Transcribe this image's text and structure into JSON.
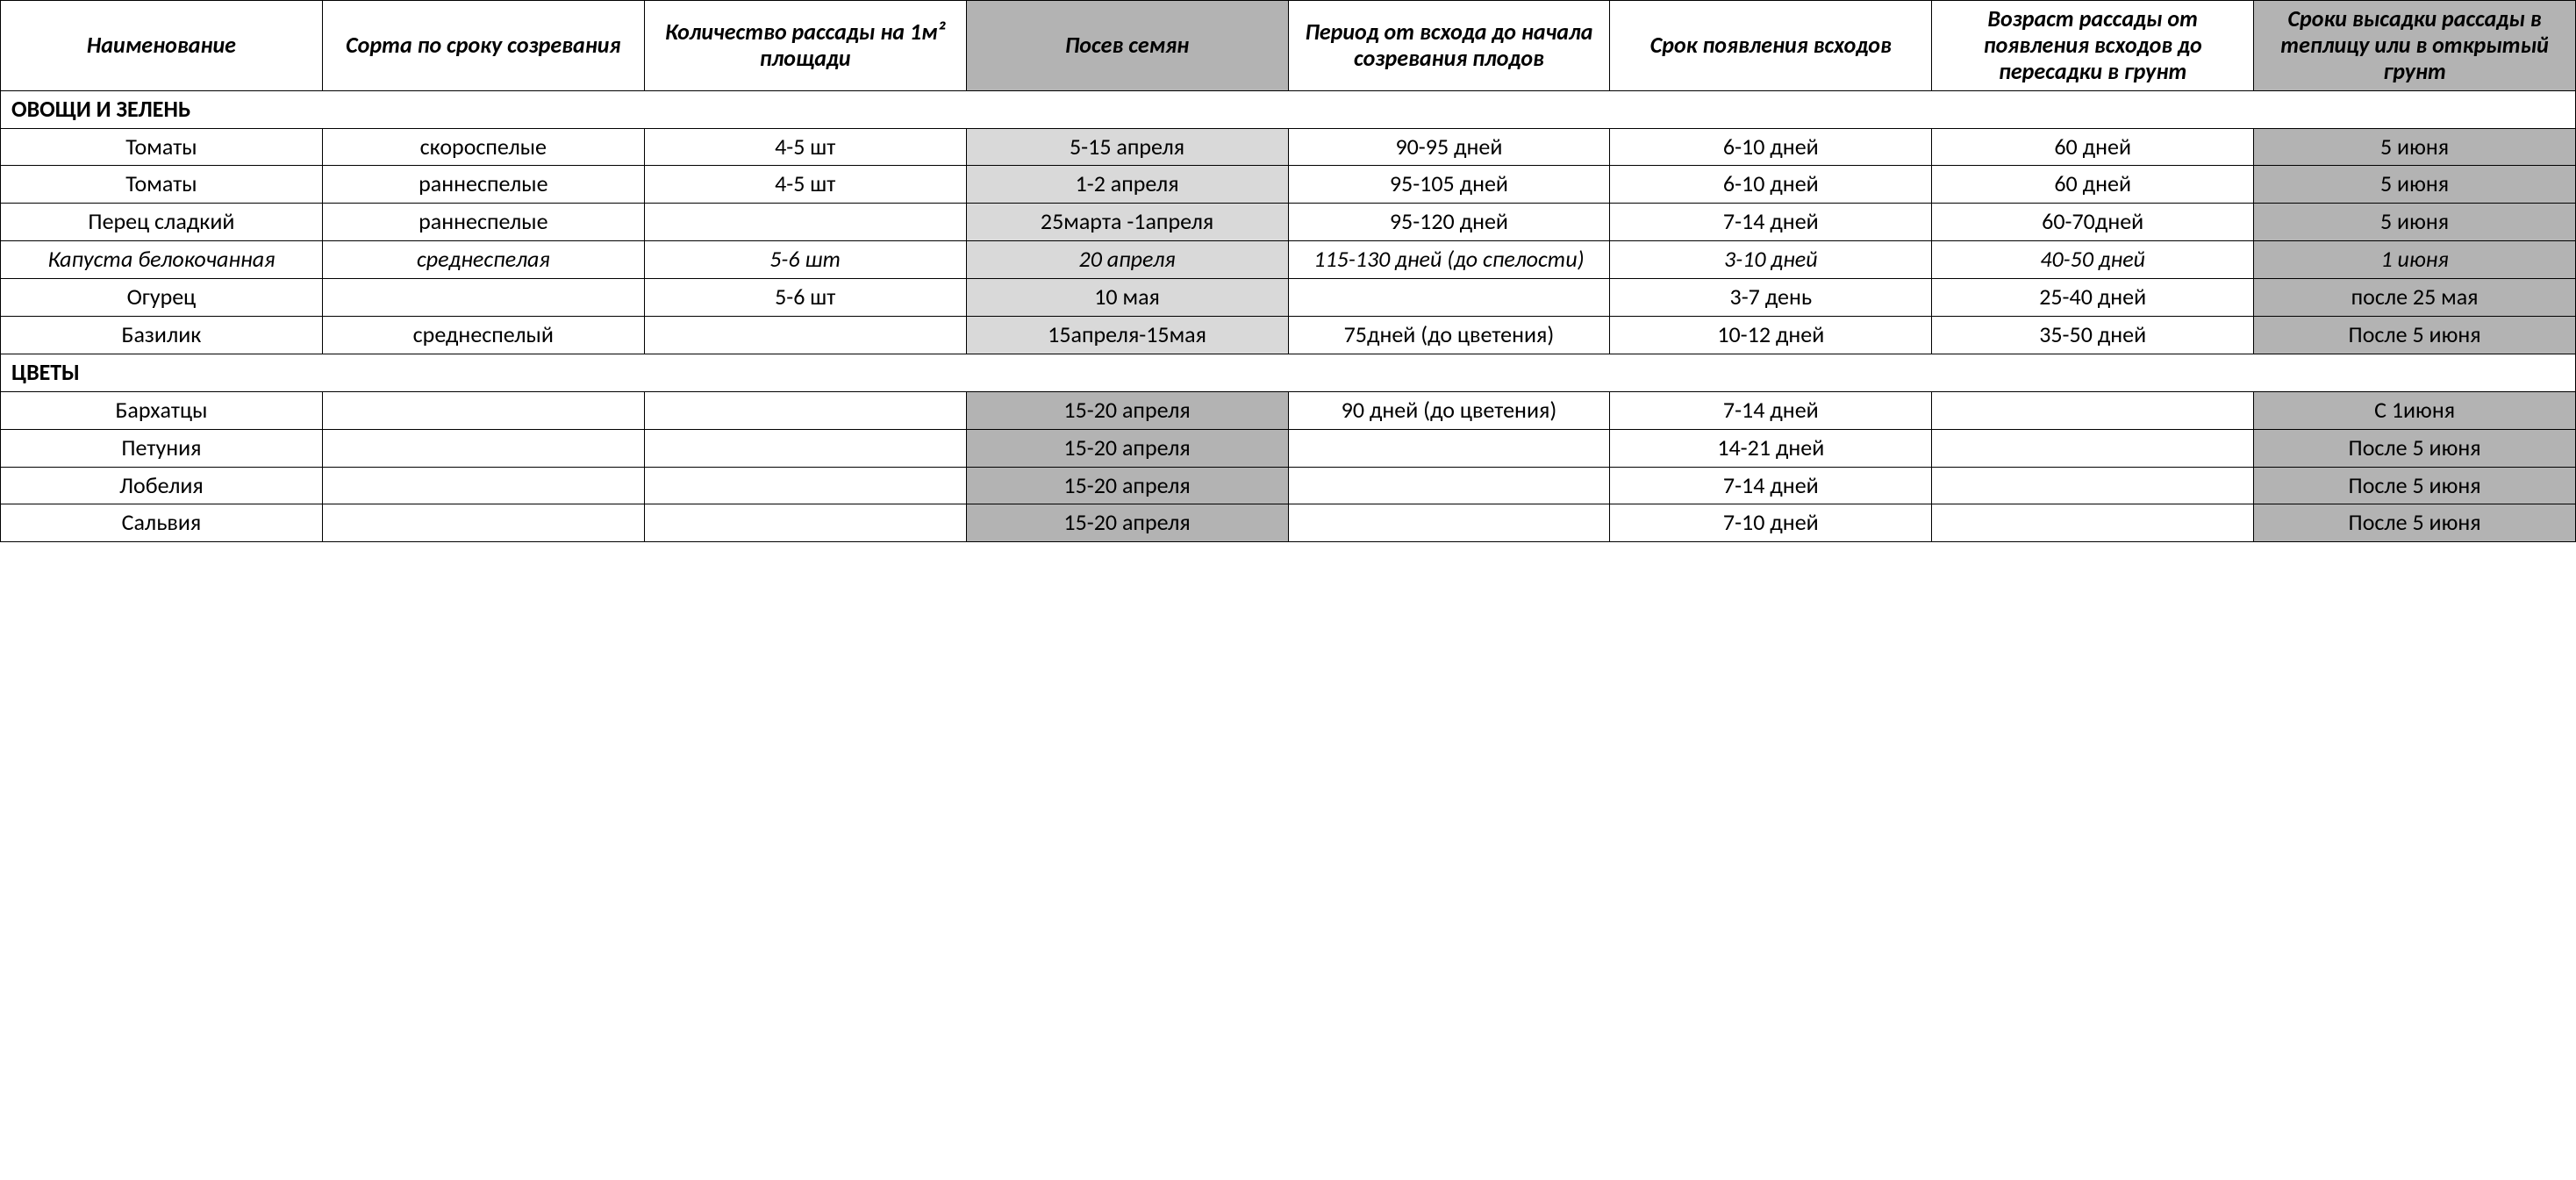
{
  "colors": {
    "header_shade_dark": "#b3b3b3",
    "header_shade_none": "#ffffff",
    "cell_shade_light": "#d9d9d9",
    "cell_shade_dark": "#b3b3b3",
    "border": "#000000",
    "text": "#000000"
  },
  "columns": [
    {
      "label": "Наименование",
      "header_bg": "#ffffff"
    },
    {
      "label": "Сорта по сроку созревания",
      "header_bg": "#ffffff"
    },
    {
      "label": "Количество рассады на 1м² площади",
      "header_bg": "#ffffff"
    },
    {
      "label": "Посев семян",
      "header_bg": "#b3b3b3"
    },
    {
      "label": "Период от всхода до начала созревания плодов",
      "header_bg": "#ffffff"
    },
    {
      "label": "Срок появления всходов",
      "header_bg": "#ffffff"
    },
    {
      "label": "Возраст рассады от появления всходов до пересадки в грунт",
      "header_bg": "#ffffff"
    },
    {
      "label": "Сроки высадки рассады в теплицу или в открытый грунт",
      "header_bg": "#b3b3b3"
    }
  ],
  "sections": [
    {
      "title": "ОВОЩИ И ЗЕЛЕНЬ",
      "rows": [
        {
          "italic": false,
          "cells": [
            {
              "v": "Томаты",
              "bg": "#ffffff"
            },
            {
              "v": "скороспелые",
              "bg": "#ffffff"
            },
            {
              "v": "4-5 шт",
              "bg": "#ffffff"
            },
            {
              "v": "5-15 апреля",
              "bg": "#d9d9d9"
            },
            {
              "v": "90-95 дней",
              "bg": "#ffffff"
            },
            {
              "v": "6-10 дней",
              "bg": "#ffffff"
            },
            {
              "v": "60 дней",
              "bg": "#ffffff"
            },
            {
              "v": "5 июня",
              "bg": "#b3b3b3"
            }
          ]
        },
        {
          "italic": false,
          "cells": [
            {
              "v": "Томаты",
              "bg": "#ffffff"
            },
            {
              "v": "раннеспелые",
              "bg": "#ffffff"
            },
            {
              "v": "4-5 шт",
              "bg": "#ffffff"
            },
            {
              "v": "1-2 апреля",
              "bg": "#d9d9d9"
            },
            {
              "v": "95-105 дней",
              "bg": "#ffffff"
            },
            {
              "v": "6-10 дней",
              "bg": "#ffffff"
            },
            {
              "v": "60 дней",
              "bg": "#ffffff"
            },
            {
              "v": "5 июня",
              "bg": "#b3b3b3"
            }
          ]
        },
        {
          "italic": false,
          "cells": [
            {
              "v": "Перец сладкий",
              "bg": "#ffffff"
            },
            {
              "v": "раннеспелые",
              "bg": "#ffffff"
            },
            {
              "v": "",
              "bg": "#ffffff"
            },
            {
              "v": "25марта -1апреля",
              "bg": "#d9d9d9"
            },
            {
              "v": "95-120 дней",
              "bg": "#ffffff"
            },
            {
              "v": "7-14 дней",
              "bg": "#ffffff"
            },
            {
              "v": "60-70дней",
              "bg": "#ffffff"
            },
            {
              "v": "5 июня",
              "bg": "#b3b3b3"
            }
          ]
        },
        {
          "italic": true,
          "cells": [
            {
              "v": "Капуста белокочанная",
              "bg": "#ffffff"
            },
            {
              "v": "среднеспелая",
              "bg": "#ffffff"
            },
            {
              "v": "5-6 шт",
              "bg": "#ffffff"
            },
            {
              "v": "20 апреля",
              "bg": "#d9d9d9"
            },
            {
              "v": "115-130 дней (до спелости)",
              "bg": "#ffffff"
            },
            {
              "v": "3-10 дней",
              "bg": "#ffffff"
            },
            {
              "v": "40-50 дней",
              "bg": "#ffffff"
            },
            {
              "v": "1 июня",
              "bg": "#b3b3b3"
            }
          ]
        },
        {
          "italic": false,
          "cells": [
            {
              "v": "Огурец",
              "bg": "#ffffff"
            },
            {
              "v": "",
              "bg": "#ffffff"
            },
            {
              "v": "5-6 шт",
              "bg": "#ffffff"
            },
            {
              "v": "10 мая",
              "bg": "#d9d9d9"
            },
            {
              "v": "",
              "bg": "#ffffff"
            },
            {
              "v": "3-7  день",
              "bg": "#ffffff"
            },
            {
              "v": "25-40 дней",
              "bg": "#ffffff"
            },
            {
              "v": "после 25 мая",
              "bg": "#b3b3b3"
            }
          ]
        },
        {
          "italic": false,
          "cells": [
            {
              "v": "Базилик",
              "bg": "#ffffff"
            },
            {
              "v": "среднеспелый",
              "bg": "#ffffff"
            },
            {
              "v": "",
              "bg": "#ffffff"
            },
            {
              "v": "15апреля-15мая",
              "bg": "#d9d9d9"
            },
            {
              "v": "75дней (до цветения)",
              "bg": "#ffffff"
            },
            {
              "v": "10-12 дней",
              "bg": "#ffffff"
            },
            {
              "v": "35-50 дней",
              "bg": "#ffffff"
            },
            {
              "v": "После 5 июня",
              "bg": "#b3b3b3"
            }
          ]
        }
      ]
    },
    {
      "title": "ЦВЕТЫ",
      "rows": [
        {
          "italic": false,
          "cells": [
            {
              "v": "Бархатцы",
              "bg": "#ffffff"
            },
            {
              "v": "",
              "bg": "#ffffff"
            },
            {
              "v": "",
              "bg": "#ffffff"
            },
            {
              "v": "15-20 апреля",
              "bg": "#b3b3b3"
            },
            {
              "v": "90 дней (до цветения)",
              "bg": "#ffffff"
            },
            {
              "v": "7-14 дней",
              "bg": "#ffffff"
            },
            {
              "v": "",
              "bg": "#ffffff"
            },
            {
              "v": "С 1июня",
              "bg": "#b3b3b3"
            }
          ]
        },
        {
          "italic": false,
          "cells": [
            {
              "v": "Петуния",
              "bg": "#ffffff"
            },
            {
              "v": "",
              "bg": "#ffffff"
            },
            {
              "v": "",
              "bg": "#ffffff"
            },
            {
              "v": "15-20 апреля",
              "bg": "#b3b3b3"
            },
            {
              "v": "",
              "bg": "#ffffff"
            },
            {
              "v": "14-21 дней",
              "bg": "#ffffff"
            },
            {
              "v": "",
              "bg": "#ffffff"
            },
            {
              "v": "После 5 июня",
              "bg": "#b3b3b3"
            }
          ]
        },
        {
          "italic": false,
          "cells": [
            {
              "v": "Лобелия",
              "bg": "#ffffff"
            },
            {
              "v": "",
              "bg": "#ffffff"
            },
            {
              "v": "",
              "bg": "#ffffff"
            },
            {
              "v": "15-20 апреля",
              "bg": "#b3b3b3"
            },
            {
              "v": "",
              "bg": "#ffffff"
            },
            {
              "v": "7-14 дней",
              "bg": "#ffffff"
            },
            {
              "v": "",
              "bg": "#ffffff"
            },
            {
              "v": "После 5 июня",
              "bg": "#b3b3b3"
            }
          ]
        },
        {
          "italic": false,
          "cells": [
            {
              "v": "Сальвия",
              "bg": "#ffffff"
            },
            {
              "v": "",
              "bg": "#ffffff"
            },
            {
              "v": "",
              "bg": "#ffffff"
            },
            {
              "v": "15-20 апреля",
              "bg": "#b3b3b3"
            },
            {
              "v": "",
              "bg": "#ffffff"
            },
            {
              "v": "7-10 дней",
              "bg": "#ffffff"
            },
            {
              "v": "",
              "bg": "#ffffff"
            },
            {
              "v": "После 5 июня",
              "bg": "#b3b3b3"
            }
          ]
        }
      ]
    }
  ]
}
